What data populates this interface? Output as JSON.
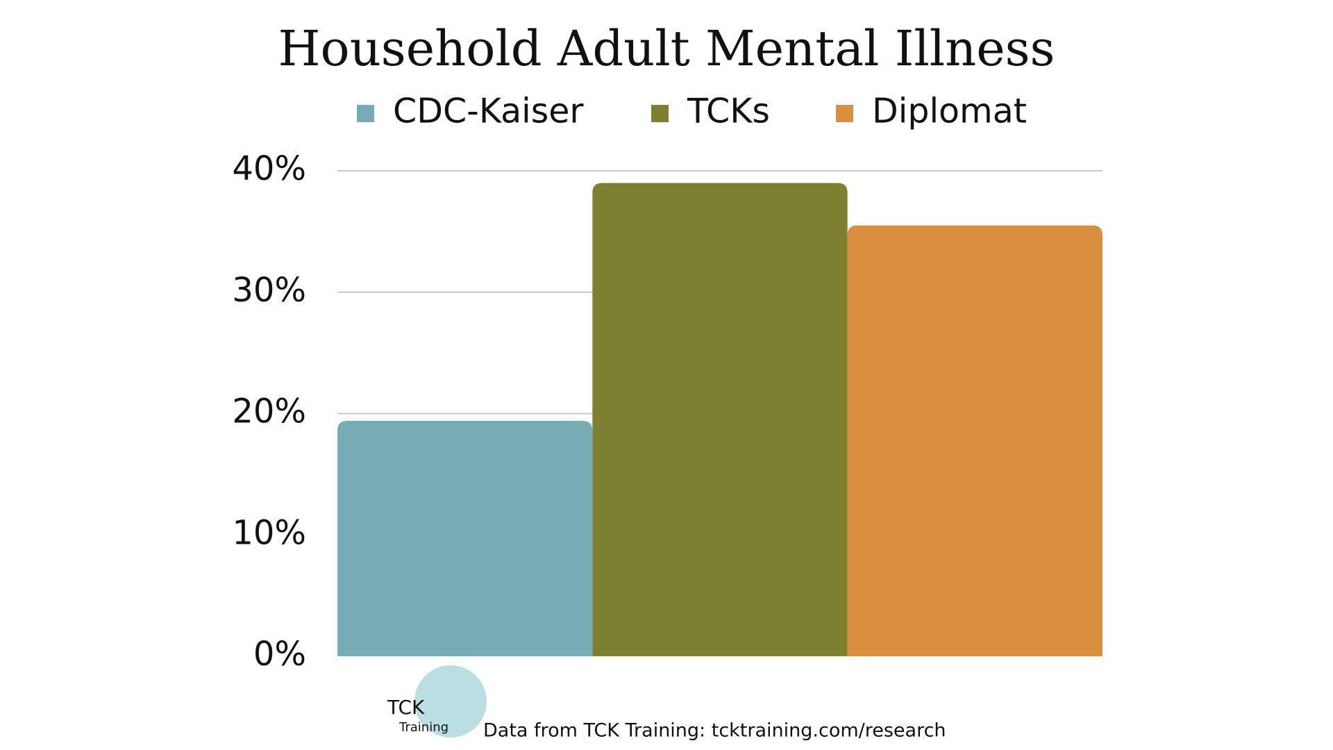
{
  "chart_data": {
    "type": "bar",
    "title": "Household Adult Mental Illness",
    "series": [
      {
        "name": "CDC-Kaiser",
        "color": "#78abb5",
        "values": [
          19.4
        ]
      },
      {
        "name": "TCKs",
        "color": "#7d7f31",
        "values": [
          39.0
        ]
      },
      {
        "name": "Diplomat",
        "color": "#da8f40",
        "values": [
          35.5
        ]
      }
    ],
    "ylim": [
      0,
      40
    ],
    "yticks": [
      {
        "value": 0,
        "label": "0%"
      },
      {
        "value": 10,
        "label": "10%"
      },
      {
        "value": 20,
        "label": "20%"
      },
      {
        "value": 30,
        "label": "30%"
      },
      {
        "value": 40,
        "label": "40%"
      }
    ],
    "grid": true,
    "legend": "top",
    "logo": [
      "TCK",
      "Training"
    ],
    "source": "Data from TCK Training: tcktraining.com/research"
  }
}
